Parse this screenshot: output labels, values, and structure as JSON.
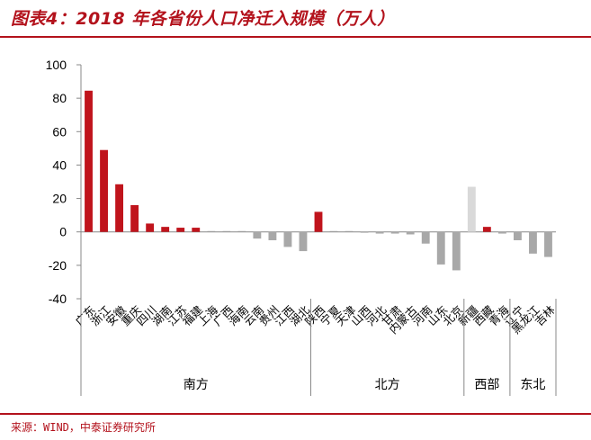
{
  "title": "图表4：2018 年各省份人口净迁入规模（万人）",
  "source": "来源：WIND，中泰证券研究所",
  "colors": {
    "north_south": "#c0141c",
    "northeast_west": "#a8a8a8",
    "tibet": "#d9d9d9"
  },
  "chart_data": {
    "type": "bar",
    "title": "2018 年各省份人口净迁入规模（万人）",
    "ylim": [
      -40,
      100
    ],
    "yticks": [
      100,
      80,
      60,
      40,
      20,
      0,
      -20,
      -40
    ],
    "grid": false,
    "groups": [
      {
        "name": "南方",
        "categories": [
          "广东",
          "浙江",
          "安徽",
          "重庆",
          "四川",
          "湖南",
          "江苏",
          "福建",
          "上海",
          "广西",
          "海南",
          "云南",
          "贵州",
          "江西",
          "湖北"
        ]
      },
      {
        "name": "北方",
        "categories": [
          "陕西",
          "宁夏",
          "天津",
          "山西",
          "河北",
          "甘肃",
          "内蒙古",
          "河南",
          "山东",
          "北京"
        ]
      },
      {
        "name": "西部",
        "categories": [
          "新疆",
          "西藏",
          "青海"
        ]
      },
      {
        "name": "东北",
        "categories": [
          "辽宁",
          "黑龙江",
          "吉林"
        ]
      }
    ],
    "categories": [
      "广东",
      "浙江",
      "安徽",
      "重庆",
      "四川",
      "湖南",
      "江苏",
      "福建",
      "上海",
      "广西",
      "海南",
      "云南",
      "贵州",
      "江西",
      "湖北",
      "陕西",
      "宁夏",
      "天津",
      "山西",
      "河北",
      "甘肃",
      "内蒙古",
      "河南",
      "山东",
      "北京",
      "新疆",
      "西藏",
      "青海",
      "辽宁",
      "黑龙江",
      "吉林"
    ],
    "values": [
      84.5,
      49,
      28.5,
      16,
      5,
      3,
      2.5,
      2.5,
      0.5,
      0.5,
      0.5,
      -4,
      -5,
      -9,
      -11.5,
      12,
      0.5,
      0.5,
      -0.5,
      -1,
      -1,
      -1.5,
      -7,
      -19.5,
      -23,
      27,
      3,
      -1,
      -5,
      -13,
      -15
    ],
    "bar_colors": [
      "#c0141c",
      "#c0141c",
      "#c0141c",
      "#c0141c",
      "#c0141c",
      "#c0141c",
      "#c0141c",
      "#c0141c",
      "#a8a8a8",
      "#a8a8a8",
      "#a8a8a8",
      "#a8a8a8",
      "#a8a8a8",
      "#a8a8a8",
      "#a8a8a8",
      "#c0141c",
      "#a8a8a8",
      "#a8a8a8",
      "#a8a8a8",
      "#a8a8a8",
      "#a8a8a8",
      "#a8a8a8",
      "#a8a8a8",
      "#a8a8a8",
      "#a8a8a8",
      "#d9d9d9",
      "#c0141c",
      "#a8a8a8",
      "#a8a8a8",
      "#a8a8a8",
      "#a8a8a8"
    ]
  }
}
